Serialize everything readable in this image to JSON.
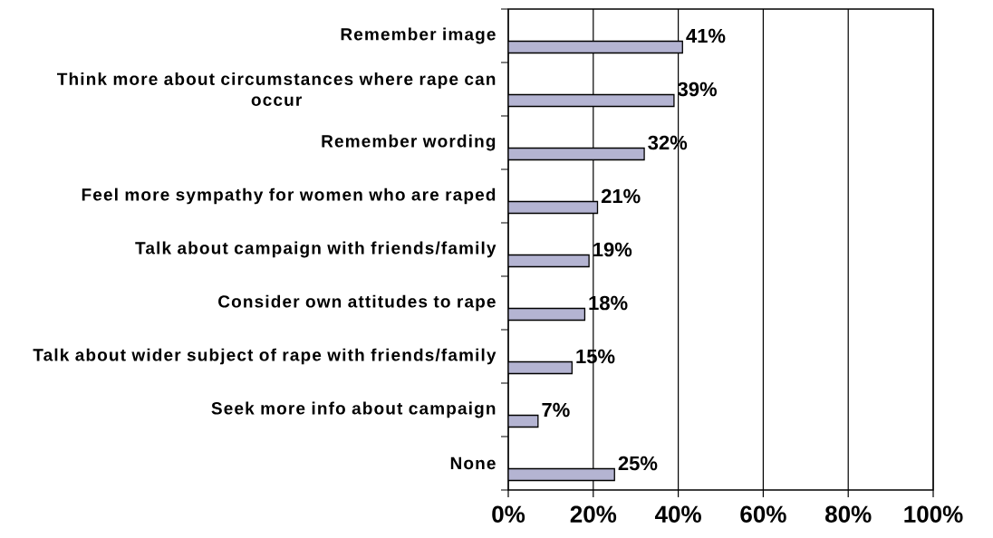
{
  "chart_data": {
    "type": "bar",
    "orientation": "horizontal",
    "categories": [
      "Remember image",
      "Think more about circumstances where rape can occur",
      "Remember wording",
      "Feel more sympathy for women who are raped",
      "Talk about campaign with friends/family",
      "Consider own attitudes to rape",
      "Talk about wider subject of rape with friends/family",
      "Seek more info about campaign",
      "None"
    ],
    "values": [
      41,
      39,
      32,
      21,
      19,
      18,
      15,
      7,
      25
    ],
    "value_labels": [
      "41%",
      "39%",
      "32%",
      "21%",
      "19%",
      "18%",
      "15%",
      "7%",
      "25%"
    ],
    "color": "#b4b4d2",
    "xlim": [
      0,
      100
    ],
    "xticks": [
      {
        "value": 0,
        "label": "0%"
      },
      {
        "value": 20,
        "label": "20%"
      },
      {
        "value": 40,
        "label": "40%"
      },
      {
        "value": 60,
        "label": "60%"
      },
      {
        "value": 80,
        "label": "80%"
      },
      {
        "value": 100,
        "label": "100%"
      }
    ],
    "grid": "x"
  }
}
